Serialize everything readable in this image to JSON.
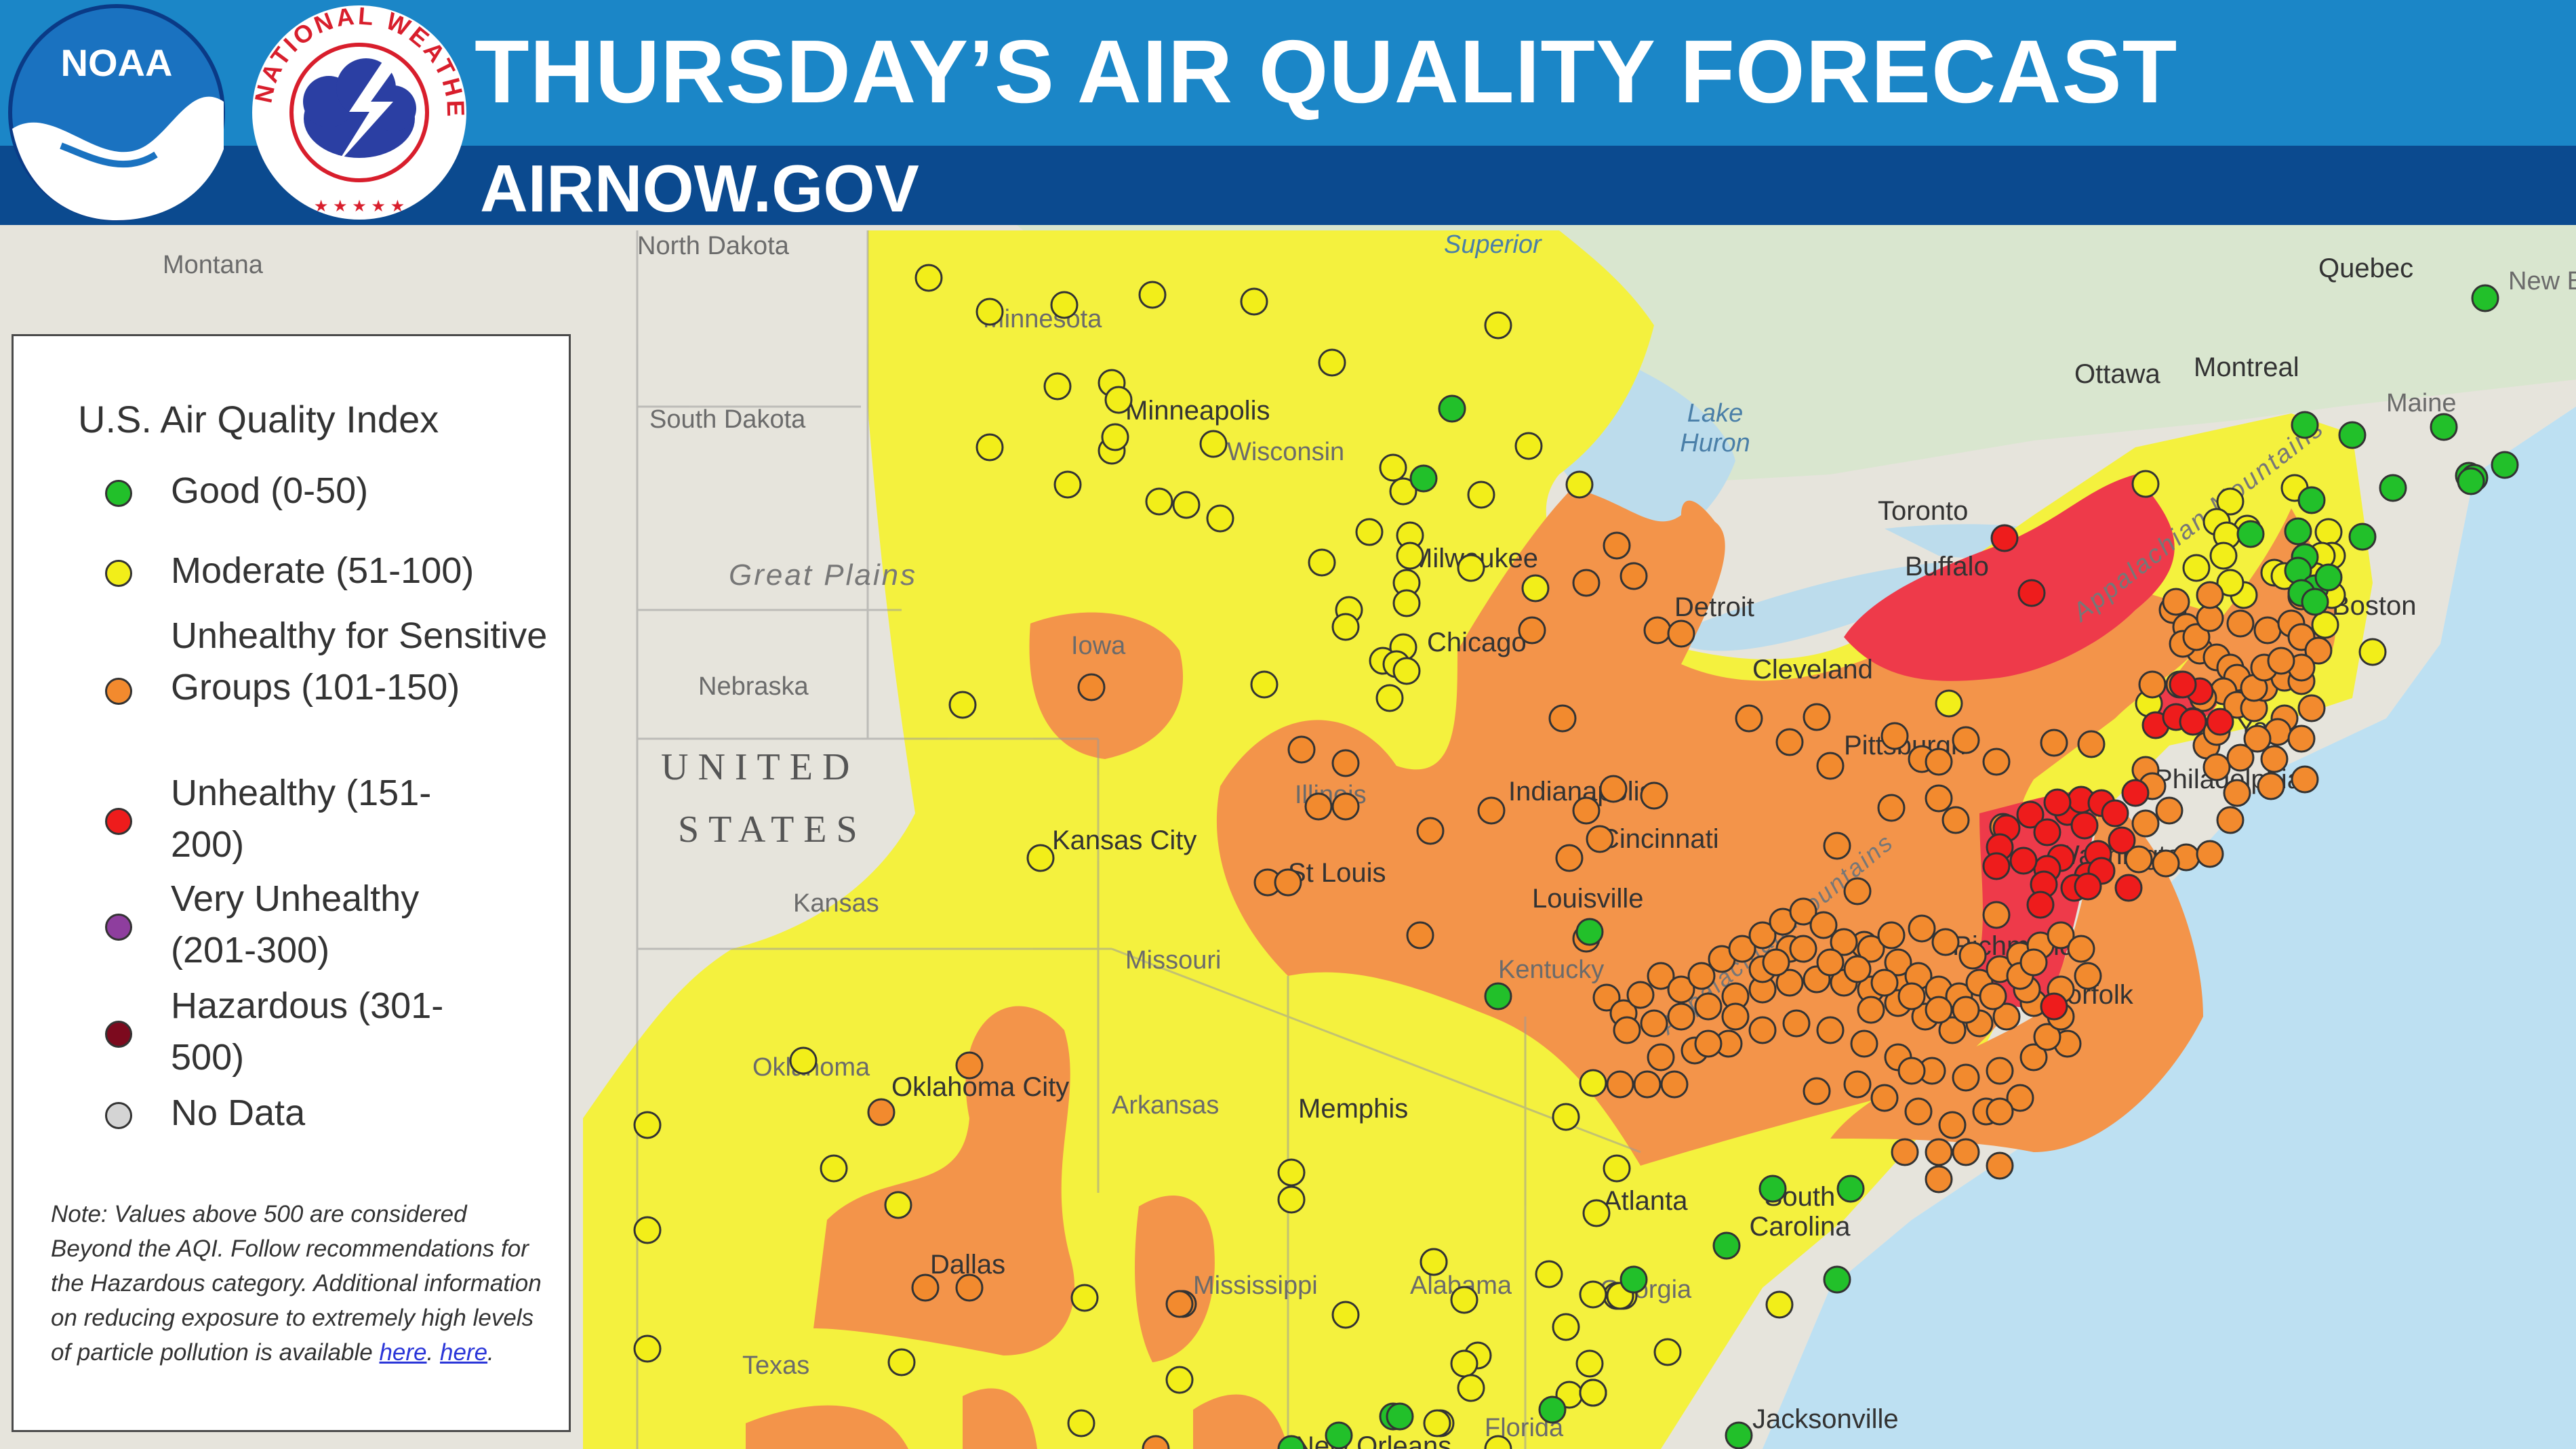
{
  "header": {
    "title": "THURSDAY’S AIR QUALITY FORECAST",
    "subtitle": "AIRNOW.GOV",
    "noaa_logo_text": "NOAA",
    "nws_logo_text": "NATIONAL WEATHER SERVICE",
    "brand_colors": {
      "top_band": "#1b86c7",
      "bottom_band": "#0b4a8f"
    }
  },
  "legend": {
    "title": "U.S. Air Quality Index",
    "items": [
      {
        "label": "Good (0-50)",
        "color": "#22c02a"
      },
      {
        "label": "Moderate (51-100)",
        "color": "#f2ee19"
      },
      {
        "label": "Unhealthy for Sensitive Groups (101-150)",
        "color": "#f28a2e"
      },
      {
        "label": "Unhealthy (151-200)",
        "color": "#ee1c1c"
      },
      {
        "label": "Very Unhealthy (201-300)",
        "color": "#8e3e9e"
      },
      {
        "label": "Hazardous (301-500)",
        "color": "#7c0a1e"
      },
      {
        "label": "No Data",
        "color": "#d4d4d4"
      }
    ],
    "note_text": "Note: Values above 500 are considered Beyond the AQI. Follow recommendations for the Hazardous category. Additional information on reducing exposure to extremely high levels of particle pollution is available",
    "link1": "here",
    "link2": "here"
  },
  "map": {
    "labels": {
      "north_dakota": "North Dakota",
      "montana": "Montana",
      "minnesota": "Minnesota",
      "superior": "Superior",
      "south_dakota": "South Dakota",
      "minneapolis": "Minneapolis",
      "wisconsin": "Wisconsin",
      "lake_huron": "Lake Huron",
      "ottawa": "Ottawa",
      "montreal": "Montreal",
      "quebec": "Quebec",
      "maine": "Maine",
      "new_brunswick": "New Bruns",
      "toronto": "Toronto",
      "buffalo": "Buffalo",
      "great_plains": "Great Plains",
      "milwaukee": "Milwaukee",
      "detroit": "Detroit",
      "boston": "Boston",
      "chicago": "Chicago",
      "nebraska": "Nebraska",
      "iowa": "Iowa",
      "cleveland": "Cleveland",
      "appalachian_n": "Appalachian Mountains",
      "new_york": "York",
      "pittsburgh": "Pittsburgh",
      "united": "UNITED",
      "states": "STATES",
      "philadelphia": "Philadelphia",
      "illinois": "Illinois",
      "indianapolis": "Indianapolis",
      "cincinnati": "Cincinnati",
      "kansas_city": "Kansas City",
      "washington": "Washington",
      "st_louis": "St Louis",
      "kansas": "Kansas",
      "louisville": "Louisville",
      "appalachian_s": "Appalachian Mountains",
      "richmond": "Richmond",
      "missouri": "Missouri",
      "kentucky": "Kentucky",
      "norfolk": "Norfolk",
      "oklahoma": "Oklahoma",
      "oklahoma_city": "Oklahoma City",
      "arkansas": "Arkansas",
      "memphis": "Memphis",
      "atlanta": "Atlanta",
      "south_carolina": "South Carolina",
      "dallas": "Dallas",
      "mississippi": "Mississippi",
      "alabama": "Alabama",
      "georgia": "Georgia",
      "texas": "Texas",
      "florida": "Florida",
      "new_orleans": "New Orleans",
      "jacksonville": "Jacksonville"
    },
    "aqi_colors": {
      "moderate_fill": "#f4f13e",
      "usg_fill": "#f3944a",
      "unhealthy_fill": "#ee3a4a"
    }
  }
}
